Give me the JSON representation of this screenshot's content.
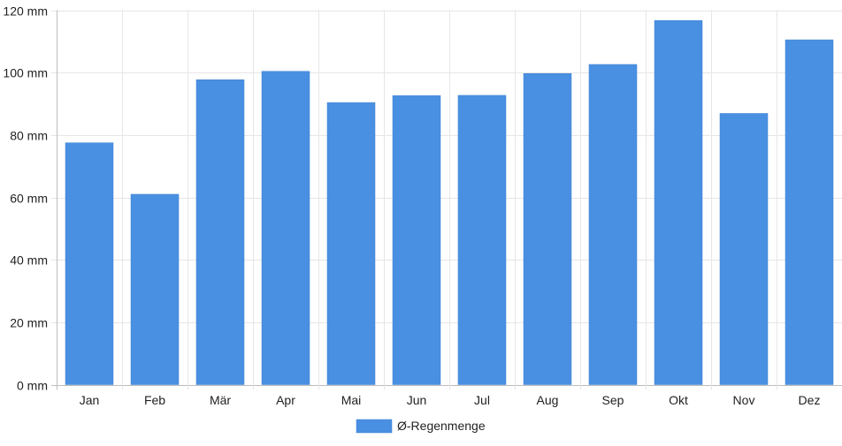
{
  "chart_data": {
    "type": "bar",
    "categories": [
      "Jan",
      "Feb",
      "Mär",
      "Apr",
      "Mai",
      "Jun",
      "Jul",
      "Aug",
      "Sep",
      "Okt",
      "Nov",
      "Dez"
    ],
    "series": [
      {
        "name": "Ø-Regenmenge",
        "values": [
          77.5,
          61,
          97.7,
          100.4,
          90.4,
          92.6,
          92.7,
          99.7,
          102.6,
          116.7,
          86.9,
          110.5
        ],
        "color": "#4a90e2"
      }
    ],
    "y_ticks": [
      "0 mm",
      "20 mm",
      "40 mm",
      "60 mm",
      "80 mm",
      "100 mm",
      "120 mm"
    ],
    "ylim": [
      0,
      120
    ],
    "y_unit": "mm",
    "grid": true,
    "legend_position": "bottom-center"
  }
}
